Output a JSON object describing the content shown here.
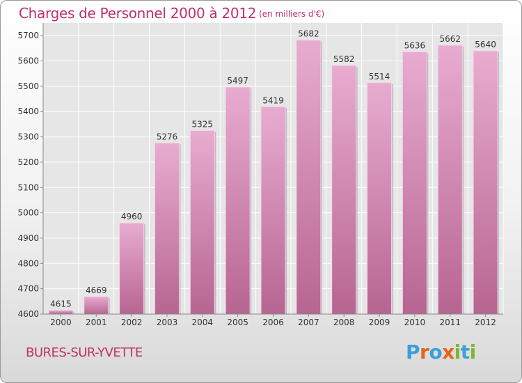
{
  "header": {
    "title": "Charges de Personnel 2000 à 2012",
    "subtitle": "(en milliers d'€)"
  },
  "footer": {
    "commune": "BURES-SUR-YVETTE",
    "logo_text": "Proxiti"
  },
  "colors": {
    "title": "#c0306a",
    "bar_top": "#e8acd0",
    "bar_bottom": "#b76591",
    "logo_letters": [
      "#3aa0dc",
      "#e8641a",
      "#3aa0dc",
      "#e8641a",
      "#7cb82e",
      "#3aa0dc",
      "#7cb82e"
    ]
  },
  "chart_data": {
    "type": "bar",
    "categories": [
      "2000",
      "2001",
      "2002",
      "2003",
      "2004",
      "2005",
      "2006",
      "2007",
      "2008",
      "2009",
      "2010",
      "2011",
      "2012"
    ],
    "values": [
      4615,
      4669,
      4960,
      5276,
      5325,
      5497,
      5419,
      5682,
      5582,
      5514,
      5636,
      5662,
      5640
    ],
    "yticks": [
      4600,
      4700,
      4800,
      4900,
      5000,
      5100,
      5200,
      5300,
      5400,
      5500,
      5600,
      5700
    ],
    "ylim": [
      4600,
      5750
    ],
    "title": "Charges de Personnel 2000 à 2012",
    "xlabel": "",
    "ylabel": "",
    "grid": true,
    "legend": "none"
  }
}
